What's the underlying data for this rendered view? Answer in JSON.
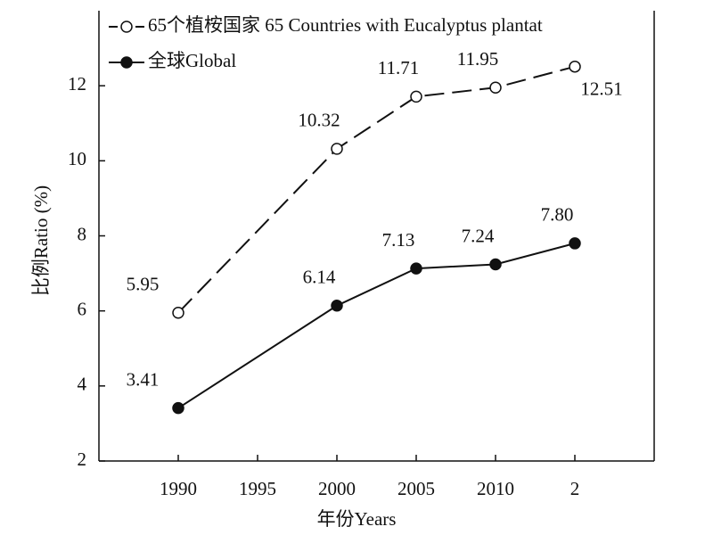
{
  "chart_data": {
    "type": "line",
    "x": [
      1990,
      2000,
      2005,
      2010,
      2015
    ],
    "series": [
      {
        "name": "65个植桉国家 65 Countries with Eucalyptus plantat",
        "color": "#111111",
        "style": "dashed",
        "marker": "open",
        "values": [
          5.95,
          10.32,
          11.71,
          11.95,
          12.51
        ]
      },
      {
        "name": "全球Global",
        "color": "#111111",
        "style": "solid",
        "marker": "filled",
        "values": [
          3.41,
          6.14,
          7.13,
          7.24,
          7.8
        ],
        "value_labels": [
          "3.41",
          "6.14",
          "7.13",
          "7.24",
          "7.80"
        ]
      }
    ],
    "xlim": [
      1985,
      2020
    ],
    "xticks": [
      1990,
      1995,
      2000,
      2005,
      2010,
      {
        "value": 2015,
        "label": "2"
      }
    ],
    "ylim": [
      2,
      14
    ],
    "yticks": [
      2,
      4,
      6,
      8,
      10,
      12
    ],
    "xlabel": "年份Years",
    "ylabel": "比例Ratio (%)",
    "legend": "upper left",
    "grid": false
  }
}
